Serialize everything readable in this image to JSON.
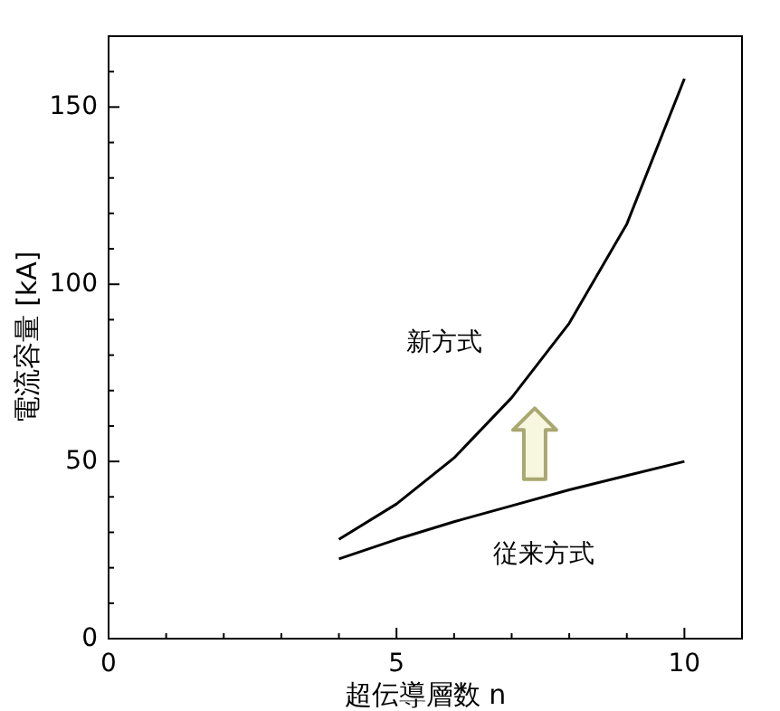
{
  "chart_data": {
    "type": "line",
    "xlabel": "超伝導層数 n",
    "ylabel": "電流容量 [kA]",
    "x": [
      4,
      5,
      6,
      7,
      8,
      9,
      10
    ],
    "series": [
      {
        "name": "新方式",
        "color": "#000000",
        "values": [
          28,
          38,
          51,
          68,
          89,
          117,
          158
        ]
      },
      {
        "name": "従来方式",
        "color": "#000000",
        "values": [
          22.5,
          28,
          33,
          37.5,
          42,
          46,
          50
        ]
      }
    ],
    "xlim": [
      0,
      11
    ],
    "xticks": [
      0,
      {
        "value": 1,
        "label": null
      },
      {
        "value": 2,
        "label": null
      },
      {
        "value": 3,
        "label": null
      },
      {
        "value": 4,
        "label": null
      },
      5,
      {
        "value": 6,
        "label": null
      },
      {
        "value": 7,
        "label": null
      },
      {
        "value": 8,
        "label": null
      },
      {
        "value": 9,
        "label": null
      },
      10
    ],
    "ylim": [
      0,
      170
    ],
    "yticks": [
      0,
      {
        "value": 10,
        "label": null
      },
      {
        "value": 20,
        "label": null
      },
      {
        "value": 30,
        "label": null
      },
      {
        "value": 40,
        "label": null
      },
      50,
      {
        "value": 60,
        "label": null
      },
      {
        "value": 70,
        "label": null
      },
      {
        "value": 80,
        "label": null
      },
      {
        "value": 90,
        "label": null
      },
      100,
      {
        "value": 110,
        "label": null
      },
      {
        "value": 120,
        "label": null
      },
      {
        "value": 130,
        "label": null
      },
      {
        "value": 140,
        "label": null
      },
      150,
      {
        "value": 160,
        "label": null
      }
    ],
    "grid": false,
    "marker": "none",
    "line_style": "solid"
  }
}
